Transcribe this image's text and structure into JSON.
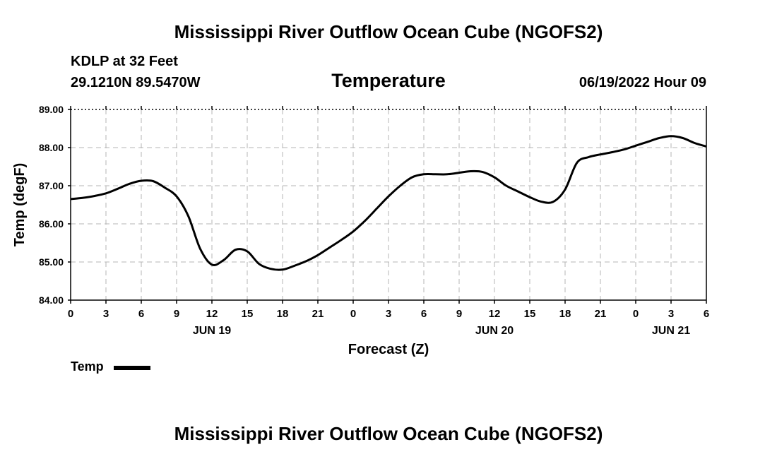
{
  "header": {
    "title_top": "Mississippi River Outflow Ocean Cube (NGOFS2)",
    "title_bottom": "Mississippi River Outflow Ocean Cube (NGOFS2)",
    "station": "KDLP at 32 Feet",
    "coordinates": "29.1210N  89.5470W",
    "timestamp": "06/19/2022 Hour 09"
  },
  "chart_data": {
    "type": "line",
    "title": "Temperature",
    "xlabel": "Forecast (Z)",
    "ylabel": "Temp (degF)",
    "xlim": [
      0,
      54
    ],
    "ylim": [
      84.0,
      89.0
    ],
    "yticks": [
      "84.00",
      "85.00",
      "86.00",
      "87.00",
      "88.00",
      "89.00"
    ],
    "xtick_labels": [
      "0",
      "3",
      "6",
      "9",
      "12",
      "15",
      "18",
      "21",
      "0",
      "3",
      "6",
      "9",
      "12",
      "15",
      "18",
      "21",
      "0",
      "3",
      "6"
    ],
    "date_labels": [
      {
        "label": "JUN 19",
        "hour": 12
      },
      {
        "label": "JUN 20",
        "hour": 36
      },
      {
        "label": "JUN 21",
        "hour": 51
      }
    ],
    "grid": true,
    "series": [
      {
        "name": "Temp",
        "color": "#000000",
        "x": [
          0,
          1,
          2,
          3,
          4,
          5,
          6,
          7,
          8,
          9,
          10,
          11,
          12,
          13,
          14,
          15,
          16,
          17,
          18,
          19,
          20,
          21,
          22,
          23,
          24,
          25,
          26,
          27,
          28,
          29,
          30,
          31,
          32,
          33,
          34,
          35,
          36,
          37,
          38,
          39,
          40,
          41,
          42,
          43,
          44,
          45,
          46,
          47,
          48,
          49,
          50,
          51,
          52,
          53,
          54
        ],
        "values": [
          86.65,
          86.68,
          86.73,
          86.8,
          86.92,
          87.05,
          87.13,
          87.12,
          86.95,
          86.72,
          86.2,
          85.35,
          84.93,
          85.05,
          85.32,
          85.28,
          84.95,
          84.82,
          84.8,
          84.9,
          85.02,
          85.18,
          85.38,
          85.58,
          85.8,
          86.08,
          86.4,
          86.72,
          87.0,
          87.22,
          87.3,
          87.3,
          87.3,
          87.34,
          87.38,
          87.36,
          87.22,
          87.0,
          86.85,
          86.7,
          86.58,
          86.58,
          86.9,
          87.6,
          87.75,
          87.82,
          87.88,
          87.95,
          88.05,
          88.15,
          88.25,
          88.3,
          88.25,
          88.12,
          88.03
        ]
      }
    ],
    "legend": {
      "label": "Temp",
      "position": "bottom-left"
    }
  }
}
